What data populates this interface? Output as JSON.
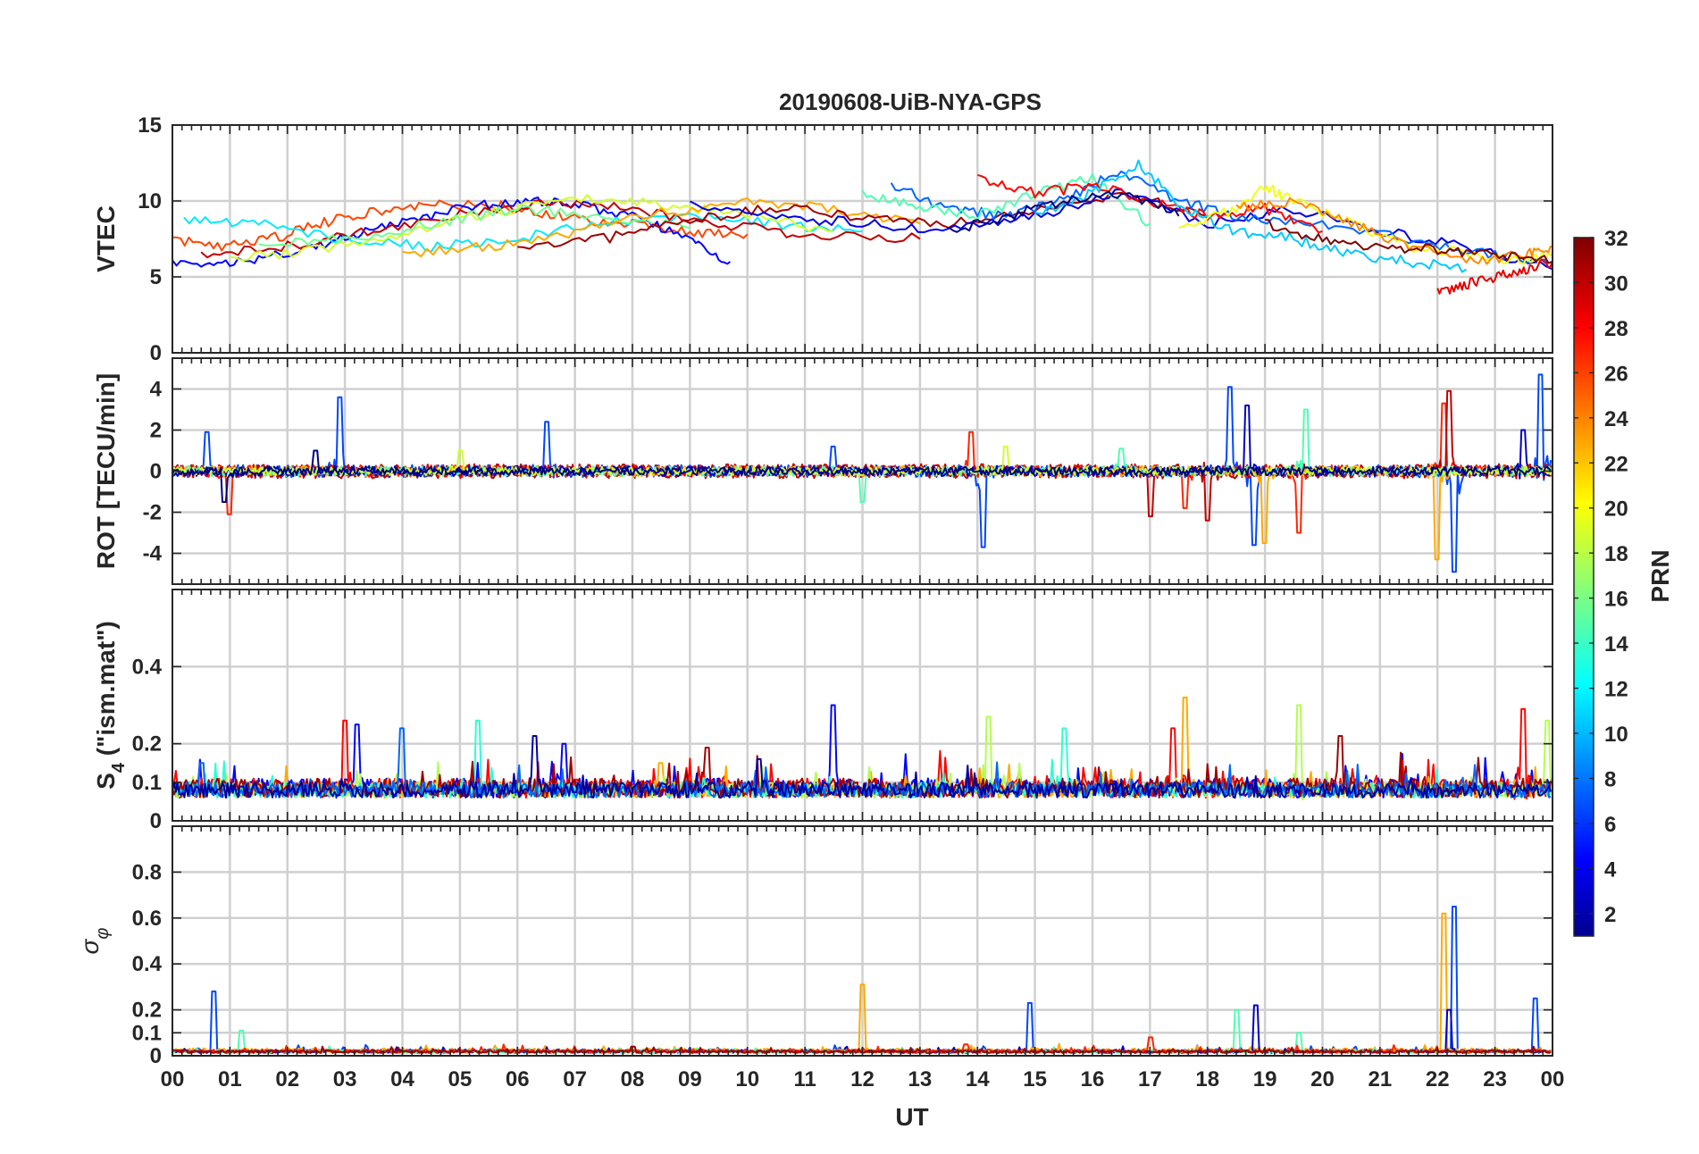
{
  "chart_data": {
    "type": "line",
    "title": "20190608-UiB-NYA-GPS",
    "xlabel": "UT",
    "xlim": [
      0,
      24
    ],
    "x_tick_labels": [
      "00",
      "01",
      "02",
      "03",
      "04",
      "05",
      "06",
      "07",
      "08",
      "09",
      "10",
      "11",
      "12",
      "13",
      "14",
      "15",
      "16",
      "17",
      "18",
      "19",
      "20",
      "21",
      "22",
      "23",
      "00"
    ],
    "grid": true,
    "colorbar": {
      "label": "PRN",
      "range": [
        1,
        32
      ],
      "ticks": [
        "2",
        "4",
        "6",
        "8",
        "10",
        "12",
        "14",
        "16",
        "18",
        "20",
        "22",
        "24",
        "26",
        "28",
        "30",
        "32"
      ],
      "colormap": "jet",
      "placement": "right"
    },
    "panels": [
      {
        "id": "vtec",
        "ylabel": "VTEC",
        "ylim": [
          0,
          15
        ],
        "y_ticks": [
          0,
          5,
          10,
          15
        ],
        "y_tick_labels": [
          "0",
          "5",
          "10",
          "15"
        ],
        "kind": "smooth",
        "baseline": 8,
        "series": [
          {
            "prn": 26,
            "t": [
              0.0,
              1.0,
              2.0,
              3.0,
              4.0,
              5.0,
              6.0,
              7.0,
              8.0,
              9.0,
              10.0
            ],
            "v": [
              7.5,
              7.0,
              7.8,
              9.0,
              9.5,
              9.8,
              9.6,
              8.8,
              8.5,
              8.0,
              7.8
            ]
          },
          {
            "prn": 5,
            "t": [
              0.0,
              1.0,
              2.0,
              3.0,
              4.0,
              5.0,
              6.0,
              7.0,
              8.0,
              9.0,
              9.7
            ],
            "v": [
              6.0,
              5.8,
              6.5,
              7.5,
              8.6,
              9.5,
              10.0,
              9.8,
              9.0,
              7.5,
              6.0
            ]
          },
          {
            "prn": 12,
            "t": [
              0.2,
              1.5,
              3.0,
              4.5,
              6.0,
              7.5,
              9.0,
              10.5,
              12.0
            ],
            "v": [
              8.8,
              8.5,
              7.5,
              7.0,
              7.5,
              8.5,
              9.0,
              8.5,
              8.0
            ]
          },
          {
            "prn": 30,
            "t": [
              0.5,
              2.0,
              3.5,
              5.0,
              6.5,
              8.0,
              9.5,
              11.0,
              13.0
            ],
            "v": [
              6.5,
              7.0,
              8.0,
              9.2,
              9.8,
              9.5,
              8.5,
              7.8,
              7.5
            ]
          },
          {
            "prn": 19,
            "t": [
              1.0,
              2.5,
              4.0,
              5.5,
              7.0,
              8.5,
              10.0,
              11.5
            ],
            "v": [
              6.2,
              6.8,
              7.8,
              9.2,
              10.2,
              9.8,
              9.0,
              8.0
            ]
          },
          {
            "prn": 16,
            "t": [
              1.5,
              3.0,
              4.5,
              6.0,
              7.5,
              9.0
            ],
            "v": [
              7.0,
              7.5,
              8.5,
              9.5,
              9.0,
              8.2
            ]
          },
          {
            "prn": 23,
            "t": [
              4.0,
              5.5,
              7.0,
              8.5,
              10.0,
              11.5,
              13.0
            ],
            "v": [
              6.5,
              7.0,
              8.0,
              9.2,
              10.0,
              9.5,
              8.5
            ]
          },
          {
            "prn": 31,
            "t": [
              6.0,
              7.5,
              9.0,
              10.5,
              12.0,
              13.5,
              15.0,
              16.5,
              18.0
            ],
            "v": [
              6.8,
              7.5,
              8.8,
              9.5,
              9.0,
              8.5,
              9.5,
              10.5,
              9.0
            ]
          },
          {
            "prn": 4,
            "t": [
              9.0,
              10.5,
              12.0,
              13.5,
              15.0,
              16.5,
              18.0,
              19.5,
              21.0,
              22.5,
              24.0
            ],
            "v": [
              9.8,
              9.0,
              8.5,
              8.0,
              9.0,
              10.5,
              8.5,
              9.5,
              8.0,
              7.0,
              5.5
            ]
          },
          {
            "prn": 8,
            "t": [
              12.5,
              13.5,
              14.5,
              15.5,
              16.5,
              17.5,
              18.5,
              20.0,
              21.5,
              23.0,
              24.0
            ],
            "v": [
              11.0,
              9.5,
              9.0,
              10.0,
              12.0,
              10.0,
              9.0,
              8.5,
              7.5,
              6.5,
              6.0
            ]
          },
          {
            "prn": 15,
            "t": [
              12.0,
              13.0,
              14.0,
              15.0,
              16.0,
              17.0
            ],
            "v": [
              10.5,
              9.5,
              9.0,
              10.5,
              11.5,
              8.5
            ]
          },
          {
            "prn": 28,
            "t": [
              14.0,
              15.0,
              16.0,
              17.0,
              18.0,
              19.0,
              20.0
            ],
            "v": [
              11.5,
              10.5,
              11.0,
              10.0,
              9.0,
              9.5,
              8.0
            ]
          },
          {
            "prn": 11,
            "t": [
              15.0,
              16.0,
              16.8,
              17.6,
              18.5,
              19.5,
              20.5,
              21.5,
              22.5
            ],
            "v": [
              9.0,
              10.5,
              12.5,
              9.5,
              8.0,
              7.5,
              6.5,
              6.0,
              5.5
            ]
          },
          {
            "prn": 20,
            "t": [
              17.5,
              18.5,
              19.0,
              19.5,
              20.5,
              21.5,
              22.5,
              23.5,
              24.0
            ],
            "v": [
              8.0,
              9.5,
              11.0,
              10.0,
              8.5,
              7.0,
              6.5,
              6.0,
              6.5
            ]
          },
          {
            "prn": 24,
            "t": [
              18.5,
              19.5,
              20.5,
              21.5,
              22.5,
              23.5,
              24.0
            ],
            "v": [
              9.5,
              10.0,
              8.5,
              7.0,
              6.0,
              6.5,
              7.0
            ]
          },
          {
            "prn": 29,
            "t": [
              22.0,
              22.5,
              23.0,
              23.5,
              24.0
            ],
            "v": [
              4.0,
              4.5,
              5.0,
              5.5,
              6.0
            ]
          },
          {
            "prn": 32,
            "t": [
              19.0,
              20.0,
              21.0,
              22.0,
              23.0,
              24.0
            ],
            "v": [
              8.5,
              7.5,
              7.0,
              6.8,
              6.5,
              6.0
            ]
          },
          {
            "prn": 1,
            "t": [
              13.5,
              14.5,
              15.5,
              16.5,
              17.5
            ],
            "v": [
              8.0,
              9.0,
              10.0,
              10.5,
              9.0
            ]
          }
        ]
      },
      {
        "id": "rot",
        "ylabel": "ROT [TECU/min]",
        "ylim": [
          -5.5,
          5.5
        ],
        "y_ticks": [
          -4,
          -2,
          0,
          2,
          4
        ],
        "y_tick_labels": [
          "-4",
          "-2",
          "0",
          "2",
          "4"
        ],
        "kind": "noise",
        "baseline": 0,
        "series": [
          {
            "prn": 7,
            "noise": 0.3,
            "spikes": [
              [
                0.6,
                1.9
              ],
              [
                2.9,
                3.6
              ],
              [
                6.5,
                2.4
              ],
              [
                11.5,
                1.2
              ],
              [
                14.1,
                -3.7
              ],
              [
                18.4,
                4.1
              ],
              [
                18.8,
                -3.6
              ],
              [
                22.3,
                -4.9
              ],
              [
                23.8,
                4.7
              ]
            ]
          },
          {
            "prn": 27,
            "noise": 0.3,
            "spikes": [
              [
                1.0,
                -2.1
              ],
              [
                13.9,
                1.9
              ],
              [
                17.6,
                -1.8
              ],
              [
                19.6,
                -3.0
              ],
              [
                22.1,
                3.3
              ]
            ]
          },
          {
            "prn": 30,
            "noise": 0.35,
            "spikes": [
              [
                17.0,
                -2.2
              ],
              [
                18.0,
                -2.4
              ],
              [
                22.2,
                3.9
              ]
            ]
          },
          {
            "prn": 23,
            "noise": 0.25,
            "spikes": [
              [
                19.0,
                -3.5
              ],
              [
                22.0,
                -4.3
              ]
            ]
          },
          {
            "prn": 15,
            "noise": 0.25,
            "spikes": [
              [
                12.0,
                -1.5
              ],
              [
                16.5,
                1.1
              ],
              [
                19.7,
                3.0
              ]
            ]
          },
          {
            "prn": 3,
            "noise": 0.25,
            "spikes": [
              [
                18.7,
                3.2
              ],
              [
                23.5,
                2.0
              ]
            ]
          },
          {
            "prn": 19,
            "noise": 0.2,
            "spikes": [
              [
                5.0,
                1.0
              ],
              [
                14.5,
                1.2
              ]
            ]
          },
          {
            "prn": 1,
            "noise": 0.2,
            "spikes": [
              [
                0.9,
                -1.5
              ],
              [
                2.5,
                1.0
              ]
            ]
          }
        ]
      },
      {
        "id": "s4",
        "ylabel": "S4 (\"ism.mat\")",
        "ylabel_main": "S",
        "ylabel_sub": "4",
        "ylabel_rest": " (\"ism.mat\")",
        "ylim": [
          0,
          0.6
        ],
        "y_ticks": [
          0,
          0.1,
          0.2,
          0.4
        ],
        "y_tick_labels": [
          "0",
          "0.1",
          "0.2",
          "0.4"
        ],
        "kind": "scint",
        "baseline": 0.06,
        "series": [
          {
            "prn": 5,
            "noise": 0.025,
            "spikes": [
              [
                3.2,
                0.25
              ],
              [
                11.5,
                0.3
              ],
              [
                6.8,
                0.2
              ]
            ]
          },
          {
            "prn": 28,
            "noise": 0.025,
            "spikes": [
              [
                3.0,
                0.26
              ],
              [
                17.4,
                0.24
              ],
              [
                23.5,
                0.29
              ]
            ]
          },
          {
            "prn": 23,
            "noise": 0.02,
            "spikes": [
              [
                17.6,
                0.32
              ],
              [
                8.5,
                0.15
              ]
            ]
          },
          {
            "prn": 18,
            "noise": 0.02,
            "spikes": [
              [
                14.2,
                0.27
              ],
              [
                19.6,
                0.3
              ],
              [
                23.9,
                0.26
              ]
            ]
          },
          {
            "prn": 14,
            "noise": 0.02,
            "spikes": [
              [
                5.3,
                0.26
              ],
              [
                15.5,
                0.24
              ]
            ]
          },
          {
            "prn": 31,
            "noise": 0.025,
            "spikes": [
              [
                20.3,
                0.22
              ],
              [
                9.3,
                0.19
              ]
            ]
          },
          {
            "prn": 8,
            "noise": 0.02,
            "spikes": [
              [
                4.0,
                0.24
              ],
              [
                0.5,
                0.15
              ]
            ]
          },
          {
            "prn": 2,
            "noise": 0.02,
            "spikes": [
              [
                6.3,
                0.22
              ],
              [
                10.2,
                0.16
              ]
            ]
          }
        ]
      },
      {
        "id": "sigphi",
        "ylabel": "σφ",
        "ylabel_main": "σ",
        "ylabel_sub": "φ",
        "ylim": [
          0,
          1.0
        ],
        "y_ticks": [
          0,
          0.1,
          0.2,
          0.4,
          0.6,
          0.8
        ],
        "y_tick_labels": [
          "0",
          "0.1",
          "0.2",
          "0.4",
          "0.6",
          "0.8"
        ],
        "kind": "phase",
        "baseline": 0.012,
        "series": [
          {
            "prn": 7,
            "noise": 0.008,
            "spikes": [
              [
                0.72,
                0.28
              ],
              [
                14.9,
                0.23
              ],
              [
                22.3,
                0.65
              ],
              [
                23.7,
                0.25
              ]
            ]
          },
          {
            "prn": 23,
            "noise": 0.01,
            "spikes": [
              [
                12.0,
                0.31
              ],
              [
                22.1,
                0.62
              ]
            ]
          },
          {
            "prn": 3,
            "noise": 0.006,
            "spikes": [
              [
                18.85,
                0.22
              ],
              [
                22.2,
                0.2
              ]
            ]
          },
          {
            "prn": 15,
            "noise": 0.006,
            "spikes": [
              [
                1.2,
                0.11
              ],
              [
                18.5,
                0.2
              ],
              [
                19.6,
                0.1
              ]
            ]
          },
          {
            "prn": 27,
            "noise": 0.008,
            "spikes": [
              [
                17.0,
                0.08
              ],
              [
                13.8,
                0.05
              ]
            ]
          },
          {
            "prn": 31,
            "noise": 0.006,
            "spikes": [
              [
                8.0,
                0.04
              ]
            ]
          }
        ]
      }
    ]
  }
}
